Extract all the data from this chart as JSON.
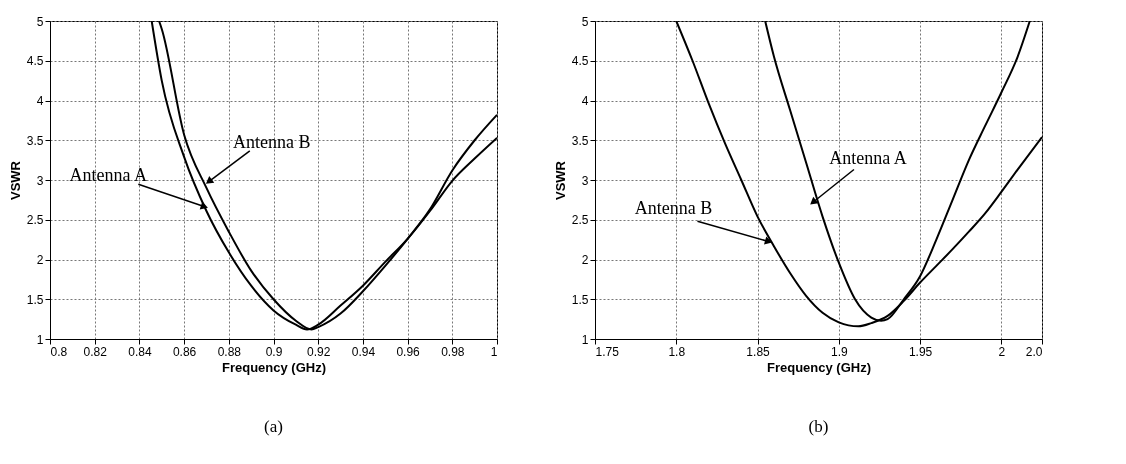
{
  "chart_data": [
    {
      "type": "line",
      "xlabel": "Frequency (GHz)",
      "ylabel": "VSWR",
      "xlim": [
        0.8,
        1.0
      ],
      "ylim": [
        1,
        5
      ],
      "xticks": [
        0.8,
        0.82,
        0.84,
        0.86,
        0.88,
        0.9,
        0.92,
        0.94,
        0.96,
        0.98,
        1
      ],
      "yticks": [
        1,
        1.5,
        2,
        2.5,
        3,
        3.5,
        4,
        4.5,
        5
      ],
      "grid": true,
      "legend": false,
      "series": [
        {
          "color": "#000000",
          "x": [
            0.8455,
            0.85,
            0.86,
            0.87,
            0.88,
            0.89,
            0.9,
            0.91,
            0.915,
            0.92,
            0.93,
            0.94,
            0.95,
            0.96,
            0.97,
            0.98,
            0.99,
            1.0
          ],
          "values": [
            5,
            4.25,
            3.29,
            2.61,
            2.09,
            1.67,
            1.36,
            1.18,
            1.12,
            1.18,
            1.42,
            1.67,
            1.97,
            2.26,
            2.61,
            2.99,
            3.27,
            3.53
          ]
        },
        {
          "color": "#000000",
          "x": [
            0.8488,
            0.85,
            0.86,
            0.87,
            0.88,
            0.89,
            0.9,
            0.91,
            0.917,
            0.92,
            0.93,
            0.94,
            0.95,
            0.96,
            0.97,
            0.98,
            0.99,
            1.0
          ],
          "values": [
            5,
            4.9,
            3.57,
            2.9,
            2.35,
            1.86,
            1.5,
            1.23,
            1.12,
            1.15,
            1.32,
            1.6,
            1.92,
            2.26,
            2.63,
            3.12,
            3.5,
            3.82
          ]
        }
      ],
      "annotations": [
        {
          "text": "Antenna A",
          "x": 0.8686,
          "y": 2.67
        },
        {
          "text": "Antenna B",
          "x": 0.8715,
          "y": 2.99
        },
        "(a)"
      ]
    },
    {
      "type": "line",
      "xlabel": "Frequency (GHz)",
      "ylabel": "VSWR",
      "xlim": [
        1.75,
        2.025
      ],
      "ylim": [
        1,
        5
      ],
      "xticks": [
        1.75,
        1.8,
        1.85,
        1.9,
        1.95,
        2,
        {
          "value": 2.025,
          "label": "2.0"
        }
      ],
      "yticks": [
        1,
        1.5,
        2,
        2.5,
        3,
        3.5,
        4,
        4.5,
        5
      ],
      "grid": true,
      "legend": false,
      "series": [
        {
          "color": "#000000",
          "x": [
            1.8547,
            1.86,
            1.87,
            1.88,
            1.89,
            1.9,
            1.91,
            1.92,
            1.926,
            1.93,
            1.94,
            1.95,
            1.96,
            1.97,
            1.98,
            1.99,
            2.0,
            2.01,
            2.0175
          ],
          "values": [
            5,
            4.56,
            3.88,
            3.21,
            2.54,
            1.96,
            1.5,
            1.27,
            1.23,
            1.25,
            1.5,
            1.79,
            2.25,
            2.75,
            3.25,
            3.68,
            4.1,
            4.55,
            5
          ]
        },
        {
          "color": "#000000",
          "x": [
            1.8,
            1.81,
            1.82,
            1.83,
            1.84,
            1.85,
            1.86,
            1.87,
            1.88,
            1.89,
            1.9,
            1.912,
            1.92,
            1.93,
            1.94,
            1.95,
            1.96,
            1.97,
            1.98,
            1.99,
            2.0,
            2.01,
            2.025
          ],
          "values": [
            5,
            4.5,
            3.96,
            3.46,
            3.0,
            2.54,
            2.17,
            1.83,
            1.54,
            1.33,
            1.21,
            1.16,
            1.2,
            1.29,
            1.48,
            1.71,
            1.92,
            2.13,
            2.35,
            2.58,
            2.85,
            3.13,
            3.54
          ]
        }
      ],
      "annotations": [
        {
          "text": "Antenna A",
          "x": 1.8847,
          "y": 2.73
        },
        {
          "text": "Antenna B",
          "x": 1.8561,
          "y": 2.23
        },
        "(b)"
      ]
    }
  ]
}
